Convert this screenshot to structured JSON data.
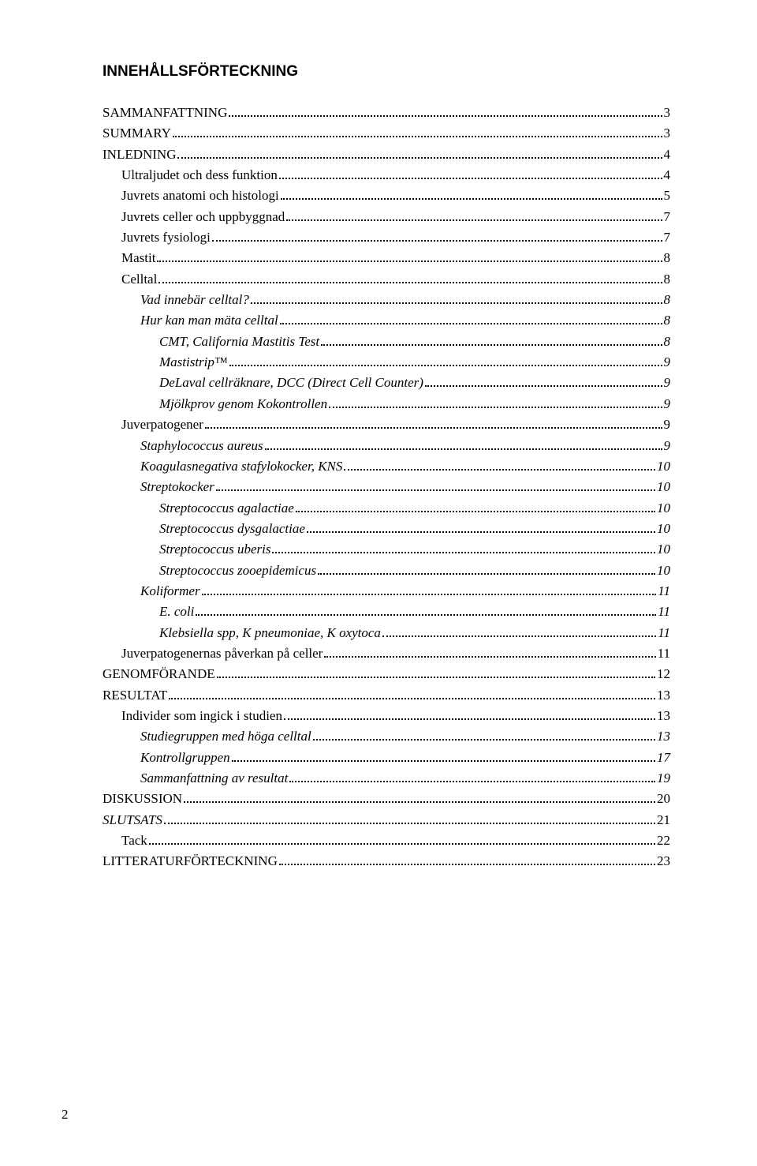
{
  "heading": "INNEHÅLLSFÖRTECKNING",
  "page_number": "2",
  "toc": [
    {
      "label": "SAMMANFATTNING",
      "page": "3",
      "level": 0,
      "italic": false
    },
    {
      "label": "SUMMARY",
      "page": "3",
      "level": 0,
      "italic": false
    },
    {
      "label": "INLEDNING",
      "page": "4",
      "level": 0,
      "italic": false
    },
    {
      "label": "Ultraljudet och dess funktion",
      "page": "4",
      "level": 1,
      "italic": false
    },
    {
      "label": "Juvrets anatomi och histologi",
      "page": "5",
      "level": 1,
      "italic": false
    },
    {
      "label": "Juvrets celler och uppbyggnad",
      "page": "7",
      "level": 1,
      "italic": false
    },
    {
      "label": "Juvrets fysiologi",
      "page": "7",
      "level": 1,
      "italic": false
    },
    {
      "label": "Mastit",
      "page": "8",
      "level": 1,
      "italic": false
    },
    {
      "label": "Celltal",
      "page": "8",
      "level": 1,
      "italic": false
    },
    {
      "label": "Vad innebär celltal?",
      "page": "8",
      "level": 2,
      "italic": true
    },
    {
      "label": "Hur kan man mäta celltal",
      "page": "8",
      "level": 2,
      "italic": true
    },
    {
      "label": "CMT, California Mastitis Test",
      "page": "8",
      "level": 3,
      "italic": true
    },
    {
      "label": "Mastistrip™",
      "page": "9",
      "level": 3,
      "italic": true
    },
    {
      "label": "DeLaval cellräknare, DCC (Direct Cell Counter)",
      "page": "9",
      "level": 3,
      "italic": true
    },
    {
      "label": "Mjölkprov genom Kokontrollen",
      "page": "9",
      "level": 3,
      "italic": true
    },
    {
      "label": "Juverpatogener",
      "page": "9",
      "level": 1,
      "italic": false
    },
    {
      "label": "Staphylococcus aureus",
      "page": "9",
      "level": 2,
      "italic": true
    },
    {
      "label": "Koagulasnegativa stafylokocker, KNS",
      "page": "10",
      "level": 2,
      "italic": true
    },
    {
      "label": "Streptokocker",
      "page": "10",
      "level": 2,
      "italic": true
    },
    {
      "label": "Streptococcus agalactiae",
      "page": "10",
      "level": 3,
      "italic": true
    },
    {
      "label": "Streptococcus dysgalactiae",
      "page": "10",
      "level": 3,
      "italic": true
    },
    {
      "label": "Streptococcus uberis",
      "page": "10",
      "level": 3,
      "italic": true
    },
    {
      "label": "Streptococcus zooepidemicus",
      "page": "10",
      "level": 3,
      "italic": true
    },
    {
      "label": "Koliformer",
      "page": "11",
      "level": 2,
      "italic": true
    },
    {
      "label": "E. coli",
      "page": "11",
      "level": 3,
      "italic": true
    },
    {
      "label": "Klebsiella spp, K pneumoniae, K oxytoca",
      "page": "11",
      "level": 3,
      "italic": true
    },
    {
      "label": "Juverpatogenernas påverkan på celler",
      "page": "11",
      "level": 1,
      "italic": false
    },
    {
      "label": "GENOMFÖRANDE",
      "page": "12",
      "level": 0,
      "italic": false
    },
    {
      "label": "RESULTAT",
      "page": "13",
      "level": 0,
      "italic": false
    },
    {
      "label": "Individer som ingick i studien",
      "page": "13",
      "level": 1,
      "italic": false
    },
    {
      "label": "Studiegruppen med höga celltal",
      "page": "13",
      "level": 2,
      "italic": true
    },
    {
      "label": "Kontrollgruppen",
      "page": "17",
      "level": 2,
      "italic": true
    },
    {
      "label": "Sammanfattning av resultat",
      "page": "19",
      "level": 2,
      "italic": true
    },
    {
      "label": "DISKUSSION",
      "page": "20",
      "level": 0,
      "italic": false
    },
    {
      "label": "SLUTSATS",
      "page": "21",
      "level": 0,
      "italic": true
    },
    {
      "label": "Tack",
      "page": "22",
      "level": 1,
      "italic": false
    },
    {
      "label": "LITTERATURFÖRTECKNING",
      "page": "23",
      "level": 0,
      "italic": false
    }
  ]
}
